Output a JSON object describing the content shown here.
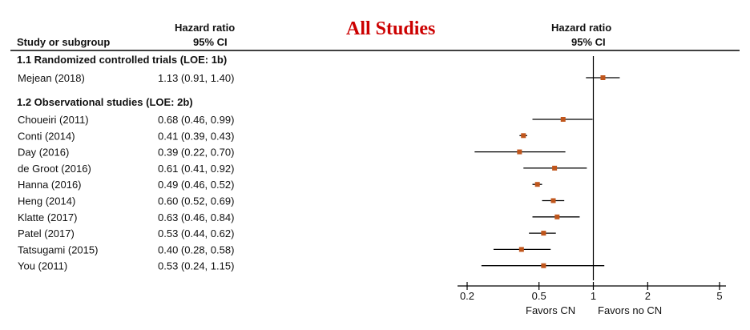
{
  "title": "All Studies",
  "headers": {
    "study": "Study or subgroup",
    "hr_line1": "Hazard  ratio",
    "hr_line2": "95% CI",
    "plot_line1": "Hazard  ratio",
    "plot_line2": "95% CI"
  },
  "colors": {
    "title": "#cc0000",
    "marker": "#c0561c",
    "line": "#000000"
  },
  "footer": {
    "left": "Favors CN",
    "right": "Favors no CN"
  },
  "chart_data": {
    "type": "forest",
    "scale": "log",
    "xlim": [
      0.2,
      5
    ],
    "ticks": [
      0.2,
      0.5,
      1,
      2,
      5
    ],
    "tick_labels": [
      "0.2",
      "0.5",
      "1",
      "2",
      "5"
    ],
    "reference_line": 1,
    "groups": [
      {
        "label": "1.1 Randomized controlled trials (LOE: 1b)",
        "studies": [
          {
            "name": "Mejean (2018)",
            "ci_text": "1.13 (0.91, 1.40)",
            "hr": 1.13,
            "lo": 0.91,
            "hi": 1.4
          }
        ]
      },
      {
        "label": "1.2 Observational studies (LOE: 2b)",
        "studies": [
          {
            "name": "Choueiri (2011)",
            "ci_text": "0.68 (0.46, 0.99)",
            "hr": 0.68,
            "lo": 0.46,
            "hi": 0.99
          },
          {
            "name": "Conti (2014)",
            "ci_text": "0.41 (0.39, 0.43)",
            "hr": 0.41,
            "lo": 0.39,
            "hi": 0.43
          },
          {
            "name": "Day (2016)",
            "ci_text": "0.39 (0.22, 0.70)",
            "hr": 0.39,
            "lo": 0.22,
            "hi": 0.7
          },
          {
            "name": "de Groot (2016)",
            "ci_text": "0.61 (0.41, 0.92)",
            "hr": 0.61,
            "lo": 0.41,
            "hi": 0.92
          },
          {
            "name": "Hanna (2016)",
            "ci_text": "0.49 (0.46, 0.52)",
            "hr": 0.49,
            "lo": 0.46,
            "hi": 0.52
          },
          {
            "name": "Heng (2014)",
            "ci_text": "0.60 (0.52, 0.69)",
            "hr": 0.6,
            "lo": 0.52,
            "hi": 0.69
          },
          {
            "name": "Klatte (2017)",
            "ci_text": "0.63 (0.46, 0.84)",
            "hr": 0.63,
            "lo": 0.46,
            "hi": 0.84
          },
          {
            "name": "Patel (2017)",
            "ci_text": "0.53 (0.44, 0.62)",
            "hr": 0.53,
            "lo": 0.44,
            "hi": 0.62
          },
          {
            "name": "Tatsugami (2015)",
            "ci_text": "0.40 (0.28, 0.58)",
            "hr": 0.4,
            "lo": 0.28,
            "hi": 0.58
          },
          {
            "name": "You (2011)",
            "ci_text": "0.53 (0.24, 1.15)",
            "hr": 0.53,
            "lo": 0.24,
            "hi": 1.15
          }
        ]
      }
    ]
  }
}
